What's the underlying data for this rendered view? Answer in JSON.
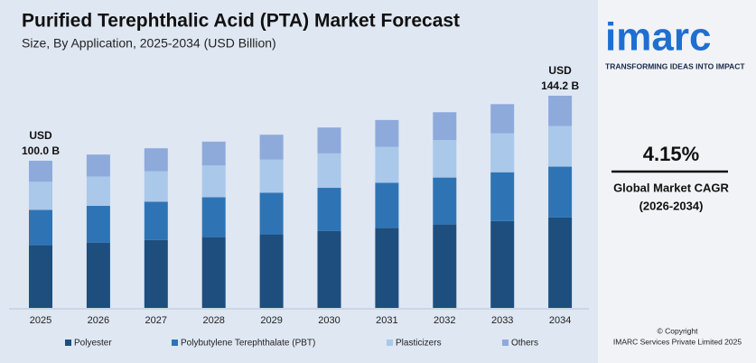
{
  "chart_data": {
    "type": "stacked_bar",
    "title": "Purified Terephthalic Acid (PTA) Market Forecast",
    "subtitle": "Size, By Application, 2025-2034 (USD Billion)",
    "categories": [
      "2025",
      "2026",
      "2027",
      "2028",
      "2029",
      "2030",
      "2031",
      "2032",
      "2033",
      "2034"
    ],
    "series": [
      {
        "name": "Polyester",
        "color": "#1d4e7e",
        "values": [
          42.6,
          44.4,
          46.2,
          48.1,
          50.1,
          52.2,
          54.4,
          56.7,
          59.0,
          61.4
        ]
      },
      {
        "name": "Polybutylene Terephthalate (PBT)",
        "color": "#2e74b5",
        "values": [
          24.0,
          25.0,
          26.0,
          27.1,
          28.2,
          29.4,
          30.6,
          31.9,
          33.2,
          34.6
        ]
      },
      {
        "name": "Plasticizers",
        "color": "#a9c8ea",
        "values": [
          19.1,
          19.9,
          20.7,
          21.6,
          22.5,
          23.4,
          24.4,
          25.4,
          26.5,
          27.6
        ]
      },
      {
        "name": "Others",
        "color": "#8eaadb",
        "values": [
          14.3,
          14.9,
          15.6,
          16.2,
          16.9,
          17.6,
          18.3,
          19.0,
          19.8,
          20.6
        ]
      }
    ],
    "annotations": [
      {
        "x": "2025",
        "text": [
          "USD",
          "100.0 B"
        ]
      },
      {
        "x": "2034",
        "text": [
          "USD",
          "144.2 B"
        ]
      }
    ]
  },
  "side_panel": {
    "logo": "imarc",
    "tagline": "TRANSFORMING IDEAS INTO IMPACT",
    "cagr": "4.15%",
    "cagr_label": "Global Market CAGR",
    "cagr_period": "(2026-2034)",
    "copyright": "© Copyright",
    "company": "IMARC Services Private Limited 2025"
  }
}
